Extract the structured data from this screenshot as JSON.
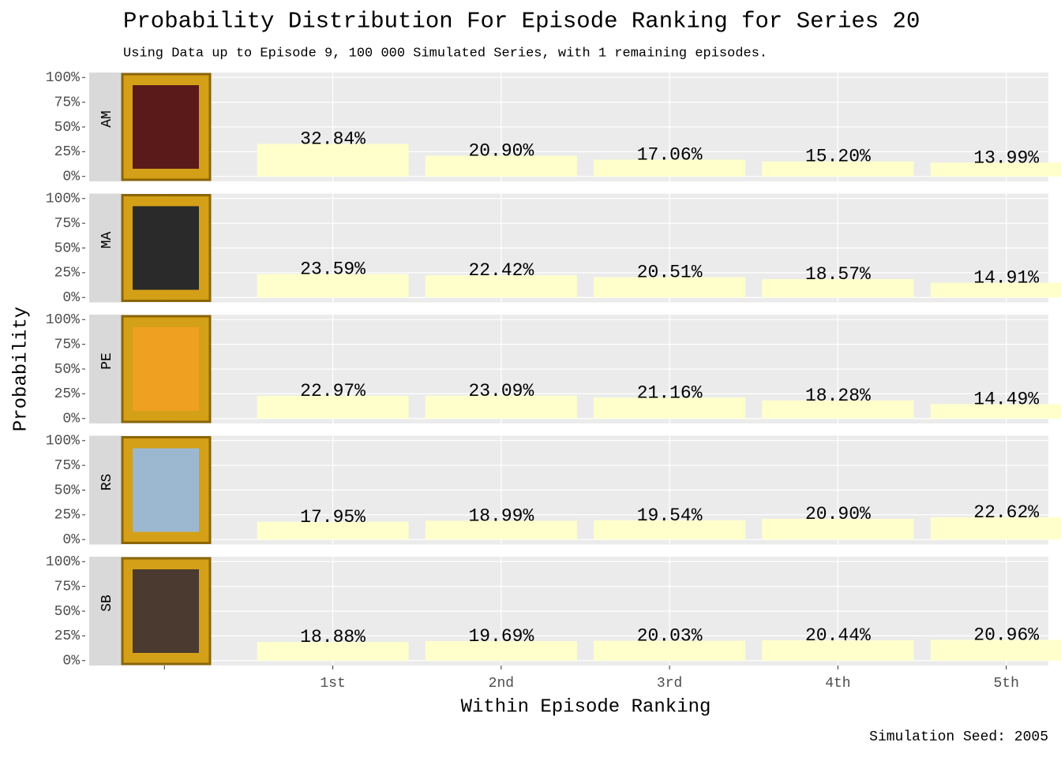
{
  "chart_data": {
    "type": "bar",
    "title": "Probability Distribution For Episode Ranking for Series 20",
    "subtitle": "Using Data up to Episode 9, 100 000 Simulated Series, with 1 remaining episodes.",
    "x_label": "Within Episode Ranking",
    "y_label": "Probability",
    "caption": "Simulation Seed: 2005",
    "categories": [
      null,
      "1st",
      "2nd",
      "3rd",
      "4th",
      "5th"
    ],
    "ylim": [
      -5,
      105
    ],
    "yticks": [
      {
        "value": 0,
        "label": "0%"
      },
      {
        "value": 25,
        "label": "25%"
      },
      {
        "value": 50,
        "label": "50%"
      },
      {
        "value": 75,
        "label": "75%"
      },
      {
        "value": 100,
        "label": "100%"
      }
    ],
    "grid": true,
    "color": "#ffffcc",
    "label_color": "#000000",
    "max_label_color": "#0a640a",
    "facets": [
      {
        "label": "AM",
        "values": [
          null,
          32.84,
          20.9,
          17.06,
          15.2,
          13.99
        ],
        "value_labels": [
          null,
          "32.84%",
          "20.90%",
          "17.06%",
          "15.20%",
          "13.99%"
        ]
      },
      {
        "label": "MA",
        "values": [
          null,
          23.59,
          22.42,
          20.51,
          18.57,
          14.91
        ],
        "value_labels": [
          null,
          "23.59%",
          "22.42%",
          "20.51%",
          "18.57%",
          "14.91%"
        ]
      },
      {
        "label": "PE",
        "values": [
          null,
          22.97,
          23.09,
          21.16,
          18.28,
          14.49
        ],
        "value_labels": [
          null,
          "22.97%",
          "23.09%",
          "21.16%",
          "18.28%",
          "14.49%"
        ]
      },
      {
        "label": "RS",
        "values": [
          null,
          17.95,
          18.99,
          19.54,
          20.9,
          22.62
        ],
        "value_labels": [
          null,
          "17.95%",
          "18.99%",
          "19.54%",
          "20.90%",
          "22.62%"
        ]
      },
      {
        "label": "SB",
        "values": [
          null,
          18.88,
          19.69,
          20.03,
          20.44,
          20.96
        ],
        "value_labels": [
          null,
          "18.88%",
          "19.69%",
          "20.03%",
          "20.44%",
          "20.96%"
        ]
      }
    ]
  }
}
